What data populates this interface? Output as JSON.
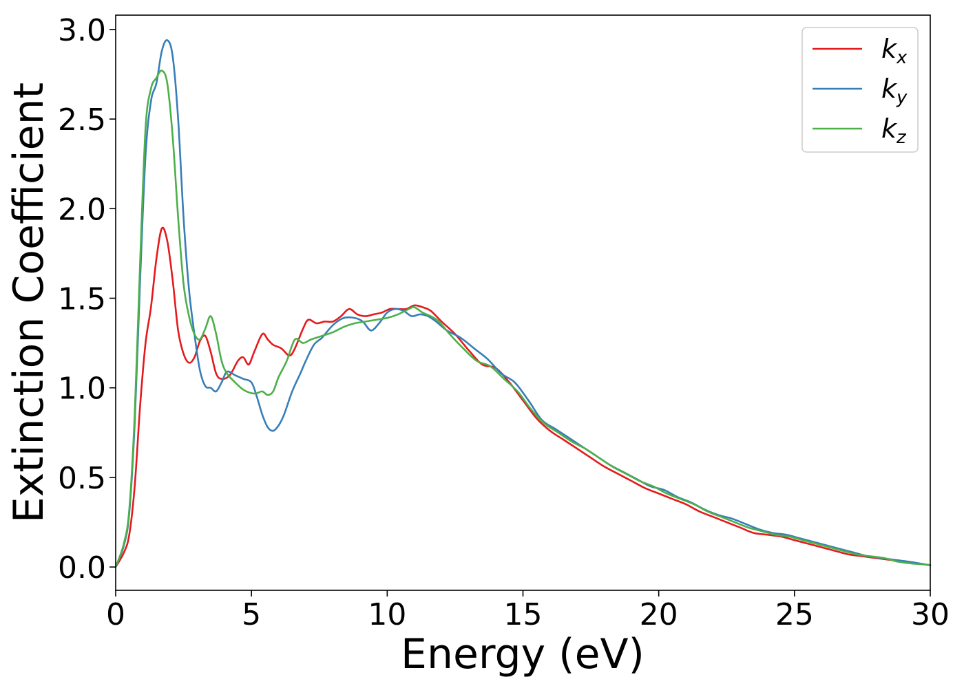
{
  "chart_data": {
    "type": "line",
    "title": "",
    "xlabel": "Energy (eV)",
    "ylabel": "Extinction Coefficient",
    "xlim": [
      0,
      30
    ],
    "ylim": [
      -0.13,
      3.08
    ],
    "x_ticks": [
      0,
      5,
      10,
      15,
      20,
      25,
      30
    ],
    "y_ticks": [
      0.0,
      0.5,
      1.0,
      1.5,
      2.0,
      2.5,
      3.0
    ],
    "x_tick_labels": [
      "0",
      "5",
      "10",
      "15",
      "20",
      "25",
      "30"
    ],
    "y_tick_labels": [
      "0.0",
      "0.5",
      "1.0",
      "1.5",
      "2.0",
      "2.5",
      "3.0"
    ],
    "grid": false,
    "legend_position": "top-right",
    "series": [
      {
        "name": "k_x",
        "legend_base": "k",
        "legend_sub": "x",
        "color": "#e41a1c",
        "x": [
          0,
          0.3,
          0.5,
          0.7,
          0.9,
          1.1,
          1.3,
          1.5,
          1.7,
          1.9,
          2.1,
          2.3,
          2.5,
          2.7,
          2.9,
          3.1,
          3.3,
          3.5,
          3.7,
          3.9,
          4.2,
          4.5,
          4.7,
          4.9,
          5.1,
          5.4,
          5.6,
          5.8,
          6.1,
          6.4,
          6.6,
          6.9,
          7.1,
          7.4,
          7.7,
          8.0,
          8.3,
          8.6,
          8.9,
          9.2,
          9.5,
          9.8,
          10.1,
          10.4,
          10.7,
          11.0,
          11.3,
          11.6,
          12.0,
          12.5,
          13.0,
          13.5,
          14.0,
          14.5,
          15.0,
          15.5,
          16.0,
          16.5,
          17.0,
          17.5,
          18.0,
          18.5,
          19.0,
          19.5,
          20.0,
          20.5,
          21.0,
          21.5,
          22.0,
          22.5,
          23.0,
          23.5,
          24.0,
          24.5,
          25.0,
          25.5,
          26.0,
          26.5,
          27.0,
          27.5,
          28.0,
          28.5,
          29.0,
          29.5,
          30.0
        ],
        "values": [
          0.0,
          0.08,
          0.18,
          0.45,
          0.9,
          1.25,
          1.45,
          1.72,
          1.89,
          1.82,
          1.6,
          1.32,
          1.19,
          1.14,
          1.17,
          1.26,
          1.29,
          1.2,
          1.08,
          1.05,
          1.07,
          1.15,
          1.17,
          1.13,
          1.2,
          1.3,
          1.27,
          1.24,
          1.22,
          1.18,
          1.22,
          1.33,
          1.38,
          1.36,
          1.37,
          1.37,
          1.4,
          1.44,
          1.41,
          1.4,
          1.41,
          1.42,
          1.44,
          1.44,
          1.44,
          1.46,
          1.45,
          1.43,
          1.37,
          1.3,
          1.21,
          1.13,
          1.11,
          1.03,
          0.93,
          0.83,
          0.76,
          0.71,
          0.66,
          0.61,
          0.56,
          0.52,
          0.48,
          0.44,
          0.41,
          0.38,
          0.35,
          0.31,
          0.28,
          0.25,
          0.22,
          0.19,
          0.18,
          0.17,
          0.15,
          0.13,
          0.11,
          0.09,
          0.07,
          0.06,
          0.05,
          0.04,
          0.03,
          0.02,
          0.01
        ]
      },
      {
        "name": "k_y",
        "legend_base": "k",
        "legend_sub": "y",
        "color": "#377eb8",
        "x": [
          0,
          0.3,
          0.5,
          0.7,
          0.9,
          1.1,
          1.3,
          1.5,
          1.7,
          1.9,
          2.1,
          2.3,
          2.5,
          2.7,
          2.9,
          3.1,
          3.3,
          3.5,
          3.7,
          3.9,
          4.1,
          4.4,
          4.7,
          5.0,
          5.2,
          5.4,
          5.6,
          5.8,
          6.0,
          6.2,
          6.5,
          6.8,
          7.0,
          7.3,
          7.6,
          8.0,
          8.4,
          8.8,
          9.1,
          9.4,
          9.7,
          10.0,
          10.3,
          10.6,
          10.9,
          11.2,
          11.5,
          11.8,
          12.2,
          12.7,
          13.2,
          13.7,
          14.2,
          14.7,
          15.2,
          15.7,
          16.2,
          16.7,
          17.2,
          17.7,
          18.2,
          18.7,
          19.2,
          19.7,
          20.2,
          20.7,
          21.2,
          21.7,
          22.2,
          22.7,
          23.2,
          23.7,
          24.2,
          24.7,
          25.2,
          25.7,
          26.2,
          26.7,
          27.2,
          27.7,
          28.2,
          28.7,
          29.2,
          29.6,
          30.0
        ],
        "values": [
          0.0,
          0.12,
          0.3,
          0.8,
          1.6,
          2.3,
          2.6,
          2.7,
          2.88,
          2.94,
          2.85,
          2.5,
          1.95,
          1.55,
          1.3,
          1.1,
          1.01,
          1.0,
          0.98,
          1.03,
          1.09,
          1.07,
          1.05,
          1.03,
          0.95,
          0.85,
          0.78,
          0.76,
          0.79,
          0.85,
          0.98,
          1.08,
          1.15,
          1.24,
          1.28,
          1.35,
          1.39,
          1.39,
          1.37,
          1.32,
          1.36,
          1.42,
          1.44,
          1.43,
          1.4,
          1.41,
          1.4,
          1.37,
          1.32,
          1.28,
          1.22,
          1.16,
          1.08,
          1.03,
          0.93,
          0.82,
          0.77,
          0.72,
          0.67,
          0.62,
          0.57,
          0.53,
          0.49,
          0.45,
          0.43,
          0.39,
          0.36,
          0.32,
          0.29,
          0.27,
          0.24,
          0.21,
          0.19,
          0.18,
          0.16,
          0.14,
          0.12,
          0.1,
          0.08,
          0.06,
          0.05,
          0.04,
          0.03,
          0.02,
          0.01
        ]
      },
      {
        "name": "k_z",
        "legend_base": "k",
        "legend_sub": "z",
        "color": "#4daf4a",
        "x": [
          0,
          0.3,
          0.5,
          0.7,
          0.9,
          1.1,
          1.3,
          1.5,
          1.7,
          1.9,
          2.1,
          2.3,
          2.5,
          2.7,
          2.9,
          3.1,
          3.3,
          3.5,
          3.7,
          3.9,
          4.1,
          4.4,
          4.7,
          5.0,
          5.2,
          5.4,
          5.6,
          5.8,
          6.0,
          6.3,
          6.6,
          6.9,
          7.2,
          7.6,
          8.0,
          8.4,
          8.8,
          9.2,
          9.6,
          10.0,
          10.4,
          10.8,
          11.0,
          11.3,
          11.6,
          11.9,
          12.3,
          12.8,
          13.3,
          13.8,
          14.3,
          14.8,
          15.3,
          15.8,
          16.3,
          16.8,
          17.3,
          17.8,
          18.3,
          18.8,
          19.3,
          19.8,
          20.3,
          20.8,
          21.3,
          21.8,
          22.3,
          22.8,
          23.3,
          23.8,
          24.3,
          24.8,
          25.3,
          25.8,
          26.3,
          26.8,
          27.3,
          27.8,
          28.3,
          28.8,
          29.3,
          29.7,
          30.0
        ],
        "values": [
          0.0,
          0.13,
          0.32,
          0.85,
          1.7,
          2.45,
          2.67,
          2.73,
          2.77,
          2.7,
          2.4,
          1.95,
          1.58,
          1.4,
          1.3,
          1.27,
          1.33,
          1.4,
          1.3,
          1.15,
          1.08,
          1.03,
          0.99,
          0.97,
          0.97,
          0.98,
          0.96,
          0.98,
          1.06,
          1.15,
          1.27,
          1.25,
          1.27,
          1.29,
          1.31,
          1.34,
          1.36,
          1.37,
          1.38,
          1.39,
          1.41,
          1.44,
          1.45,
          1.42,
          1.4,
          1.37,
          1.3,
          1.22,
          1.15,
          1.12,
          1.05,
          0.98,
          0.88,
          0.8,
          0.75,
          0.7,
          0.66,
          0.61,
          0.56,
          0.52,
          0.48,
          0.45,
          0.41,
          0.38,
          0.35,
          0.31,
          0.28,
          0.25,
          0.22,
          0.2,
          0.18,
          0.17,
          0.15,
          0.13,
          0.11,
          0.09,
          0.07,
          0.06,
          0.05,
          0.03,
          0.02,
          0.015,
          0.01
        ]
      }
    ]
  }
}
